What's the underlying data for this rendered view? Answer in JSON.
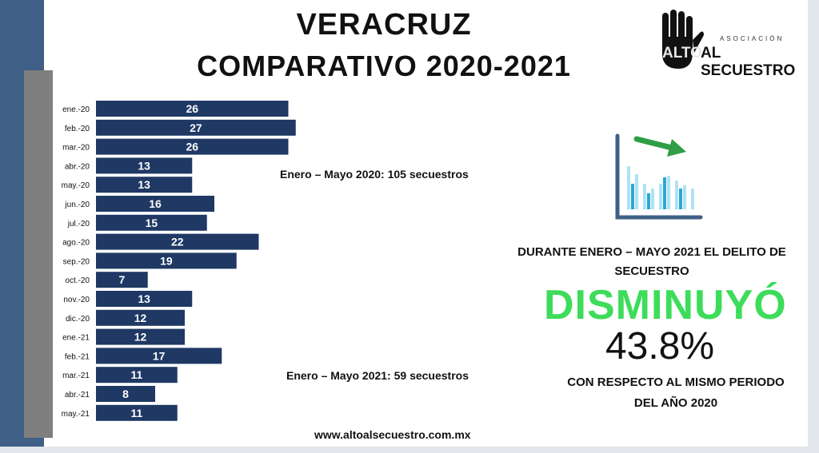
{
  "header": {
    "title_line1": "VERACRUZ",
    "title_line2": "COMPARATIVO 2020-2021"
  },
  "logo": {
    "small_text": "ASOCIACIÓN",
    "alto_text": "ALTO",
    "big_text": "AL SECUESTRO"
  },
  "annotations": {
    "period_2020": "Enero – Mayo 2020: 105 secuestros",
    "period_2021": "Enero – Mayo 2021: 59 secuestros"
  },
  "statement": {
    "line1": "DURANTE ENERO – MAYO 2021 EL DELITO DE",
    "line2": "SECUESTRO",
    "headline": "DISMINUYÓ",
    "percent": "43.8%",
    "footer1": "CON RESPECTO AL MISMO PERIODO",
    "footer2": "DEL AÑO 2020"
  },
  "website": "www.altoalsecuestro.com.mx",
  "colors": {
    "bar": "#1f3864",
    "accent_green": "#3ddc5a",
    "sidebar": "#3f5f86"
  },
  "chart_data": {
    "type": "bar",
    "orientation": "horizontal",
    "categories": [
      "ene.-20",
      "feb.-20",
      "mar.-20",
      "abr.-20",
      "may.-20",
      "jun.-20",
      "jul.-20",
      "ago.-20",
      "sep.-20",
      "oct.-20",
      "nov.-20",
      "dic.-20",
      "ene.-21",
      "feb.-21",
      "mar.-21",
      "abr.-21",
      "may.-21"
    ],
    "values": [
      26,
      27,
      26,
      13,
      13,
      16,
      15,
      22,
      19,
      7,
      13,
      12,
      12,
      17,
      11,
      8,
      11
    ],
    "title": "VERACRUZ COMPARATIVO 2020-2021",
    "data_labels": true,
    "grid": false
  }
}
